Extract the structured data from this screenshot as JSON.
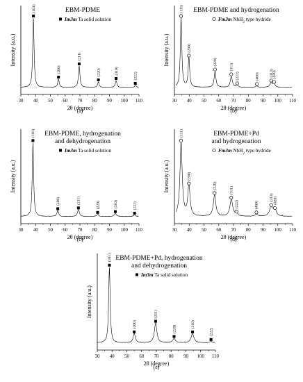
{
  "chart_data": [
    {
      "type": "line",
      "panel": "(a)",
      "title": [
        "EBM-PDME"
      ],
      "legend": {
        "marker": "filled-square",
        "phase": "Im3m",
        "text": "Ta solid solution"
      },
      "xlabel": "2θ (degree)",
      "ylabel": "Intensity (a.u.)",
      "xlim": [
        30,
        110
      ],
      "xticks": [
        30,
        40,
        50,
        60,
        70,
        80,
        90,
        100,
        110
      ],
      "peaks": [
        {
          "x": 38.5,
          "h": 1.0,
          "w": 0.55,
          "label": "(101)"
        },
        {
          "x": 55.5,
          "h": 0.12,
          "w": 0.6,
          "label": "(200)"
        },
        {
          "x": 69.5,
          "h": 0.31,
          "w": 0.6,
          "label": "(211)"
        },
        {
          "x": 82.5,
          "h": 0.08,
          "w": 0.6,
          "label": "(220)"
        },
        {
          "x": 94.5,
          "h": 0.1,
          "w": 0.6,
          "label": "(310)"
        },
        {
          "x": 107.5,
          "h": 0.03,
          "w": 0.6,
          "label": "(222)"
        }
      ]
    },
    {
      "type": "line",
      "panel": "(b)",
      "title": [
        "EBM-PDME and hydrogenation"
      ],
      "legend": {
        "marker": "open-circle",
        "phase": "Fm3m",
        "text": "NbH",
        "sub": "2",
        "text2": " type hydride"
      },
      "xlabel": "2θ (degree)",
      "ylabel": "Intensity (a.u.)",
      "xlim": [
        30,
        110
      ],
      "xticks": [
        30,
        40,
        50,
        60,
        70,
        80,
        90,
        100,
        110
      ],
      "peaks": [
        {
          "x": 34.5,
          "h": 1.0,
          "w": 0.6,
          "label": "(111)"
        },
        {
          "x": 39.8,
          "h": 0.43,
          "w": 0.6,
          "label": "(200)"
        },
        {
          "x": 57.5,
          "h": 0.23,
          "w": 0.7,
          "label": "(220)"
        },
        {
          "x": 68.5,
          "h": 0.16,
          "w": 0.8,
          "label": "(311)"
        },
        {
          "x": 72.5,
          "h": 0.03,
          "w": 0.8,
          "label": "(222)"
        },
        {
          "x": 85.8,
          "h": 0.02,
          "w": 0.8,
          "label": "(400)"
        },
        {
          "x": 95.5,
          "h": 0.07,
          "w": 0.9,
          "label": "(313)"
        },
        {
          "x": 97.5,
          "h": 0.05,
          "w": 0.9,
          "label": "(420)"
        }
      ]
    },
    {
      "type": "line",
      "panel": "(c)",
      "title": [
        "EBM-PDME, hydrogenation",
        "and dehydrogenation"
      ],
      "legend": {
        "marker": "filled-square",
        "phase": "Im3m",
        "text": "Ta solid solution"
      },
      "xlabel": "2θ (degree)",
      "ylabel": "Intensity (a.u.)",
      "xlim": [
        30,
        110
      ],
      "xticks": [
        30,
        40,
        50,
        60,
        70,
        80,
        90,
        100,
        110
      ],
      "peaks": [
        {
          "x": 38.2,
          "h": 1.0,
          "w": 0.55,
          "label": "(101)"
        },
        {
          "x": 55.0,
          "h": 0.08,
          "w": 0.7,
          "label": "(200)"
        },
        {
          "x": 69.0,
          "h": 0.09,
          "w": 0.8,
          "label": "(211)"
        },
        {
          "x": 82.0,
          "h": 0.03,
          "w": 0.8,
          "label": "(220)"
        },
        {
          "x": 94.0,
          "h": 0.04,
          "w": 0.9,
          "label": "(310)"
        },
        {
          "x": 107.0,
          "h": 0.02,
          "w": 0.9,
          "label": "(222)"
        }
      ]
    },
    {
      "type": "line",
      "panel": "(d)",
      "title": [
        "EBM-PDME+Pd",
        "and hydrogenation"
      ],
      "legend": {
        "marker": "open-circle",
        "phase": "Fm3m",
        "text": "NbH",
        "sub": "2",
        "text2": " type hydride"
      },
      "xlabel": "2θ (degree)",
      "ylabel": "Intensity (a.u.)",
      "xlim": [
        30,
        110
      ],
      "xticks": [
        30,
        40,
        50,
        60,
        70,
        80,
        90,
        100,
        110
      ],
      "peaks": [
        {
          "x": 34.5,
          "h": 1.0,
          "w": 0.9,
          "label": "(111)"
        },
        {
          "x": 39.8,
          "h": 0.42,
          "w": 0.9,
          "label": "(200)"
        },
        {
          "x": 57.2,
          "h": 0.29,
          "w": 1.0,
          "label": "(220)"
        },
        {
          "x": 68.5,
          "h": 0.23,
          "w": 1.1,
          "label": "(311)"
        },
        {
          "x": 72.0,
          "h": 0.04,
          "w": 1.0,
          "label": "(222)"
        },
        {
          "x": 85.5,
          "h": 0.03,
          "w": 1.0,
          "label": "(400)"
        },
        {
          "x": 95.5,
          "h": 0.13,
          "w": 1.3,
          "label": "(313)"
        },
        {
          "x": 98.0,
          "h": 0.09,
          "w": 1.2,
          "label": "(420)"
        }
      ]
    },
    {
      "type": "line",
      "panel": "(e)",
      "title": [
        "EBM-PDME+Pd, hydrogenation",
        "and dehydrogenation"
      ],
      "legend": {
        "marker": "filled-square",
        "phase": "Im3m",
        "text": "Ta solid solution"
      },
      "xlabel": "2θ (degree)",
      "ylabel": "Intensity (a.u.)",
      "xlim": [
        30,
        110
      ],
      "xticks": [
        30,
        40,
        50,
        60,
        70,
        80,
        90,
        100,
        110
      ],
      "peaks": [
        {
          "x": 38.2,
          "h": 1.0,
          "w": 0.6,
          "label": "(101)"
        },
        {
          "x": 55.0,
          "h": 0.12,
          "w": 0.9,
          "label": "(200)"
        },
        {
          "x": 69.5,
          "h": 0.26,
          "w": 1.0,
          "label": "(211)"
        },
        {
          "x": 82.0,
          "h": 0.06,
          "w": 1.0,
          "label": "(220)"
        },
        {
          "x": 94.5,
          "h": 0.12,
          "w": 1.2,
          "label": "(310)"
        },
        {
          "x": 107.0,
          "h": 0.02,
          "w": 1.0,
          "label": "(222)"
        }
      ]
    }
  ]
}
